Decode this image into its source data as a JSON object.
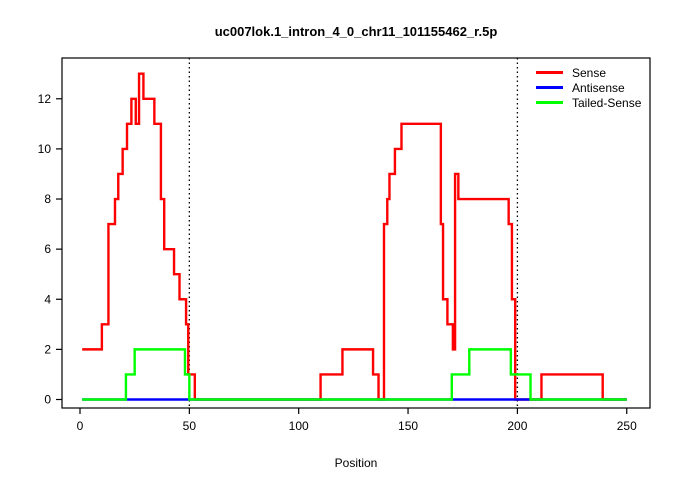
{
  "window": {
    "background": "#ffffff"
  },
  "chart_data": {
    "type": "line",
    "subtype": "step",
    "title": "uc007lok.1_intron_4_0_chr11_101155462_r.5p",
    "xlabel": "Position",
    "ylabel": "",
    "x_ticks": [
      0,
      50,
      100,
      150,
      200,
      250
    ],
    "y_ticks": [
      0,
      2,
      4,
      6,
      8,
      10,
      12
    ],
    "xlim": [
      -9,
      261
    ],
    "ylim": [
      -0.5,
      13.5
    ],
    "grid": false,
    "legend_position": "top-right",
    "axis_color": "#000000",
    "reference_lines": {
      "style": "dotted",
      "color": "#000000",
      "x_values": [
        50,
        200
      ]
    },
    "series": [
      {
        "name": "Sense",
        "color": "#FF0000",
        "step_segments": [
          [
            1,
            10,
            2
          ],
          [
            10,
            13,
            3
          ],
          [
            13,
            16,
            7
          ],
          [
            16,
            17.5,
            8
          ],
          [
            17.5,
            19.5,
            9
          ],
          [
            19.5,
            21.5,
            10
          ],
          [
            21.5,
            23.5,
            11
          ],
          [
            23.5,
            25.5,
            12
          ],
          [
            25.5,
            27,
            11
          ],
          [
            27,
            29,
            13
          ],
          [
            29,
            34,
            12
          ],
          [
            34,
            37,
            11
          ],
          [
            37,
            38.5,
            8
          ],
          [
            38.5,
            43,
            6
          ],
          [
            43,
            45.5,
            5
          ],
          [
            45.5,
            48.5,
            4
          ],
          [
            48.5,
            49.5,
            3
          ],
          [
            49.5,
            52.5,
            1
          ],
          [
            52.5,
            110,
            0
          ],
          [
            110,
            120,
            1
          ],
          [
            120,
            134,
            2
          ],
          [
            134,
            136.5,
            1
          ],
          [
            136.5,
            139,
            0
          ],
          [
            139,
            140.5,
            7
          ],
          [
            140.5,
            141.5,
            8
          ],
          [
            141.5,
            144,
            9
          ],
          [
            144,
            147,
            10
          ],
          [
            147,
            165,
            11
          ],
          [
            165,
            166,
            7
          ],
          [
            166,
            168,
            4
          ],
          [
            168,
            170.5,
            3
          ],
          [
            170.5,
            171.5,
            2
          ],
          [
            171.5,
            173,
            9
          ],
          [
            173,
            196,
            8
          ],
          [
            196,
            197.5,
            7
          ],
          [
            197.5,
            199,
            4
          ],
          [
            199,
            211,
            0
          ],
          [
            211,
            239,
            1
          ],
          [
            239,
            250,
            0
          ]
        ]
      },
      {
        "name": "Antisense",
        "color": "#0000FF",
        "step_segments": [
          [
            1,
            250,
            0
          ]
        ]
      },
      {
        "name": "Tailed-Sense",
        "color": "#00FF00",
        "step_segments": [
          [
            1,
            21,
            0
          ],
          [
            21,
            25,
            1
          ],
          [
            25,
            48,
            2
          ],
          [
            48,
            50,
            1
          ],
          [
            50,
            170,
            0
          ],
          [
            170,
            178,
            1
          ],
          [
            178,
            197,
            2
          ],
          [
            197,
            206,
            1
          ],
          [
            206,
            250,
            0
          ]
        ]
      }
    ]
  }
}
